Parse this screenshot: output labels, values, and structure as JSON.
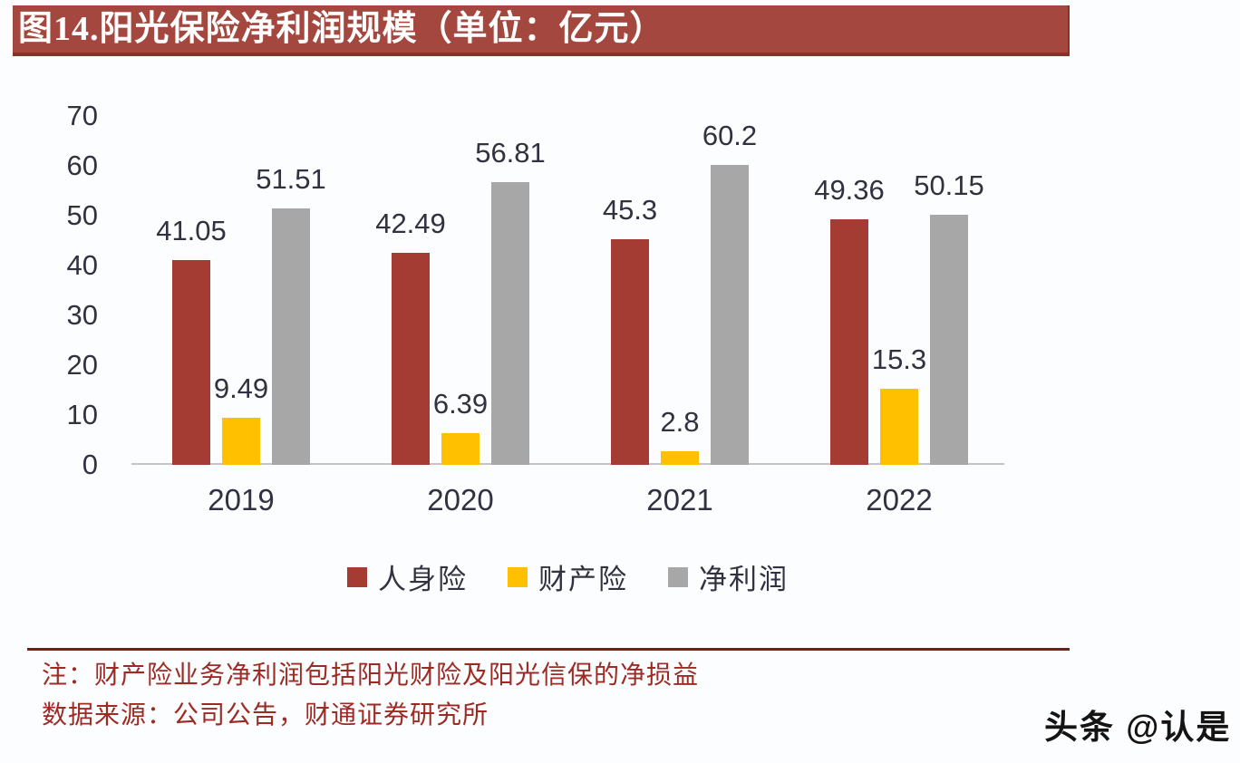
{
  "header": {
    "title": "图14.阳光保险净利润规模（单位：亿元）"
  },
  "chart_data": {
    "type": "bar",
    "title": "图14.阳光保险净利润规模（单位：亿元）",
    "unit": "亿元",
    "categories": [
      "2019",
      "2020",
      "2021",
      "2022"
    ],
    "series": [
      {
        "name": "人身险",
        "color": "#A43C33",
        "values": [
          41.05,
          42.49,
          45.3,
          49.36
        ]
      },
      {
        "name": "财产险",
        "color": "#FFC000",
        "values": [
          9.49,
          6.39,
          2.8,
          15.3
        ]
      },
      {
        "name": "净利润",
        "color": "#A7A7A7",
        "values": [
          51.51,
          56.81,
          60.2,
          50.15
        ]
      }
    ],
    "ylim": [
      0,
      70
    ],
    "yticks": [
      0,
      10,
      20,
      30,
      40,
      50,
      60,
      70
    ],
    "xlabel": "",
    "ylabel": "",
    "grid": false,
    "legend_position": "bottom",
    "data_labels": true
  },
  "footer": {
    "note": "注：财产险业务净利润包括阳光财险及阳光信保的净损益",
    "source": "数据来源：公司公告，财通证券研究所"
  },
  "watermark": {
    "text": "头条 @认是"
  }
}
